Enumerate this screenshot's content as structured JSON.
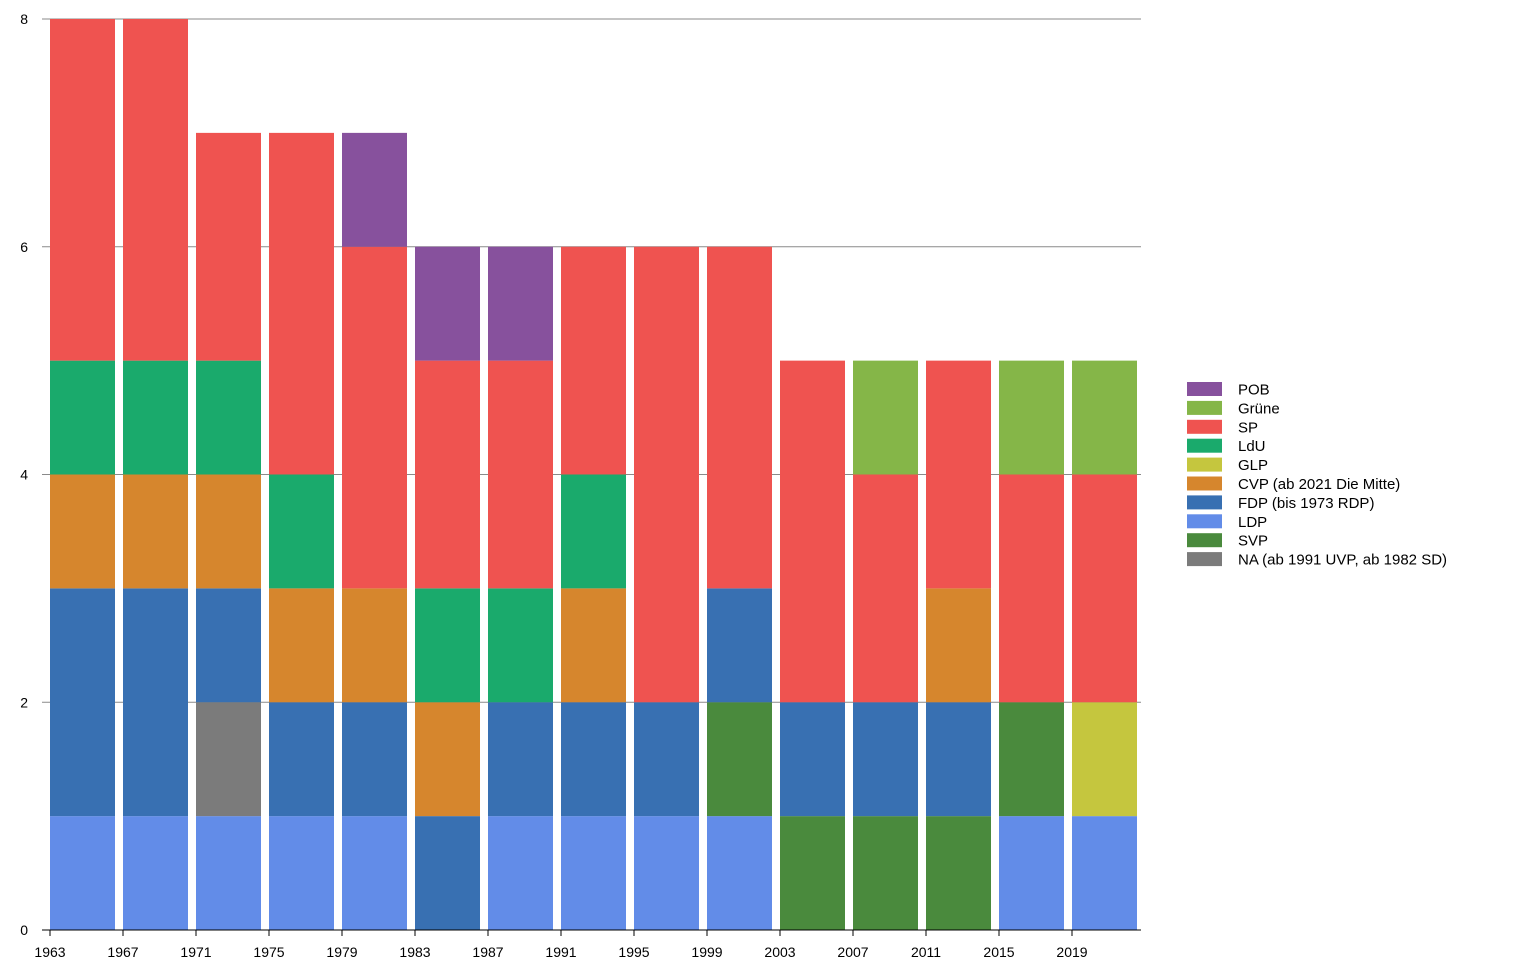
{
  "chart_data": {
    "type": "bar",
    "stacked": true,
    "title": "",
    "xlabel": "",
    "ylabel": "",
    "ylim": [
      0,
      8
    ],
    "y_ticks": [
      0,
      2,
      4,
      6,
      8
    ],
    "grid": true,
    "legend_position": "right",
    "categories": [
      "1963",
      "1967",
      "1971",
      "1975",
      "1979",
      "1983",
      "1987",
      "1991",
      "1995",
      "1999",
      "2003",
      "2007",
      "2011",
      "2015",
      "2019"
    ],
    "x_tick_labels": [
      "1963",
      "1967",
      "1971",
      "1975",
      "1979",
      "1983",
      "1987",
      "1991",
      "1995",
      "1999",
      "2003",
      "2007",
      "2011",
      "2015",
      "2019"
    ],
    "series": [
      {
        "name": "LDP",
        "color": "#628ce8",
        "values": [
          1,
          1,
          1,
          1,
          1,
          0,
          1,
          1,
          1,
          1,
          0,
          0,
          0,
          1,
          1
        ]
      },
      {
        "name": "NA (ab 1991 UVP, ab 1982 SD)",
        "color": "#7b7b7b",
        "values": [
          0,
          0,
          1,
          0,
          0,
          0,
          0,
          0,
          0,
          0,
          0,
          0,
          0,
          0,
          0
        ]
      },
      {
        "name": "SVP",
        "color": "#4a8a3d",
        "values": [
          0,
          0,
          0,
          0,
          0,
          0,
          0,
          0,
          0,
          1,
          1,
          1,
          1,
          1,
          0
        ]
      },
      {
        "name": "GLP",
        "color": "#c5c63e",
        "values": [
          0,
          0,
          0,
          0,
          0,
          0,
          0,
          0,
          0,
          0,
          0,
          0,
          0,
          0,
          1
        ]
      },
      {
        "name": "FDP (bis 1973 RDP)",
        "color": "#3870b2",
        "values": [
          2,
          2,
          1,
          1,
          1,
          1,
          1,
          1,
          1,
          1,
          1,
          1,
          1,
          0,
          0
        ]
      },
      {
        "name": "CVP (ab 2021 Die Mitte)",
        "color": "#d6862d",
        "values": [
          1,
          1,
          1,
          1,
          1,
          1,
          0,
          1,
          0,
          0,
          0,
          0,
          1,
          0,
          0
        ]
      },
      {
        "name": "LdU",
        "color": "#1aaa6c",
        "values": [
          1,
          1,
          1,
          1,
          0,
          1,
          1,
          1,
          0,
          0,
          0,
          0,
          0,
          0,
          0
        ]
      },
      {
        "name": "SP",
        "color": "#ef5350",
        "values": [
          3,
          3,
          2,
          3,
          3,
          2,
          2,
          2,
          4,
          3,
          3,
          2,
          2,
          2,
          2
        ]
      },
      {
        "name": "Grüne",
        "color": "#85b648",
        "values": [
          0,
          0,
          0,
          0,
          0,
          0,
          0,
          0,
          0,
          0,
          0,
          1,
          0,
          1,
          1
        ]
      },
      {
        "name": "POB",
        "color": "#87519d",
        "values": [
          0,
          0,
          0,
          0,
          1,
          1,
          1,
          0,
          0,
          0,
          0,
          0,
          0,
          0,
          0
        ]
      }
    ],
    "legend": [
      "POB",
      "Grüne",
      "SP",
      "LdU",
      "GLP",
      "CVP (ab 2021 Die Mitte)",
      "FDP (bis 1973 RDP)",
      "LDP",
      "SVP",
      "NA (ab 1991 UVP, ab 1982 SD)"
    ]
  }
}
